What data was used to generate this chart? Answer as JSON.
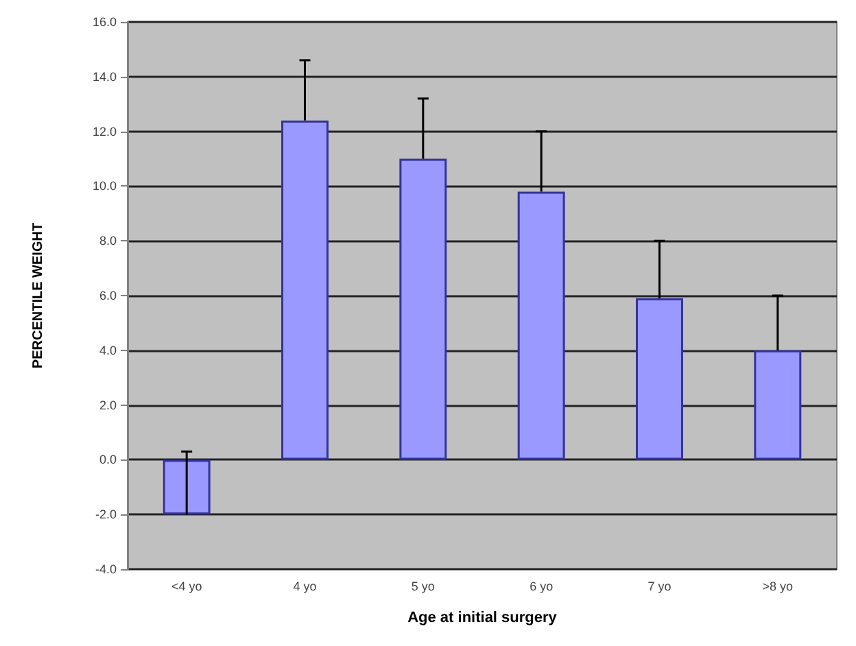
{
  "chart_data": {
    "type": "bar",
    "xlabel": "Age at initial surgery",
    "ylabel": "PERCENTILE WEIGHT",
    "categories": [
      "<4 yo",
      "4 yo",
      "5 yo",
      "6 yo",
      "7 yo",
      ">8 yo"
    ],
    "values": [
      -2.0,
      12.4,
      11.0,
      9.8,
      5.9,
      4.0
    ],
    "errors": [
      [
        -2.0,
        0.3
      ],
      [
        12.4,
        14.6
      ],
      [
        11.0,
        13.2
      ],
      [
        9.8,
        12.0
      ],
      [
        5.9,
        8.0
      ],
      [
        4.0,
        6.0
      ]
    ],
    "color": "#9999ff",
    "ylim": [
      -4,
      16
    ],
    "yticks": [
      {
        "value": -4,
        "label": "-4.0"
      },
      {
        "value": -2,
        "label": "-2.0"
      },
      {
        "value": 0,
        "label": "0.0"
      },
      {
        "value": 2,
        "label": "2.0"
      },
      {
        "value": 4,
        "label": "4.0"
      },
      {
        "value": 6,
        "label": "6.0"
      },
      {
        "value": 8,
        "label": "8.0"
      },
      {
        "value": 10,
        "label": "10.0"
      },
      {
        "value": 12,
        "label": "12.0"
      },
      {
        "value": 14,
        "label": "14.0"
      },
      {
        "value": 16,
        "label": "16.0"
      }
    ],
    "grid": "y"
  }
}
